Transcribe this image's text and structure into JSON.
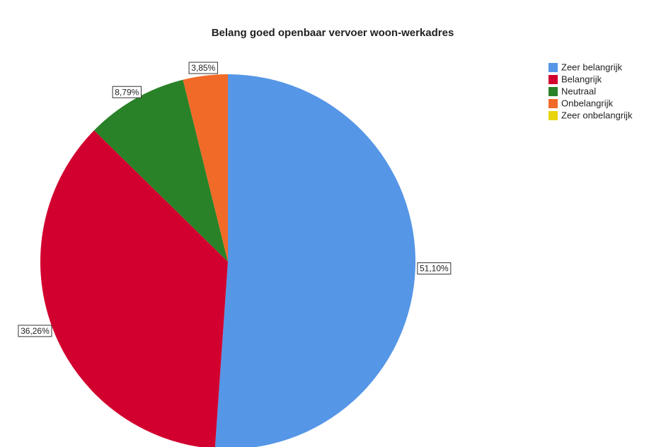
{
  "chart_data": {
    "type": "pie",
    "title": "Belang goed openbaar vervoer woon-werkadres",
    "categories": [
      "Zeer belangrijk",
      "Belangrijk",
      "Neutraal",
      "Onbelangrijk",
      "Zeer onbelangrijk"
    ],
    "values": [
      51.1,
      36.26,
      8.79,
      3.85,
      0
    ],
    "value_labels": [
      "51,10%",
      "36,26%",
      "8,79%",
      "3,85%",
      null
    ],
    "colors": [
      "#5596e6",
      "#d2002f",
      "#2a8228",
      "#f16a27",
      "#e8d40f"
    ],
    "legend": "right"
  }
}
